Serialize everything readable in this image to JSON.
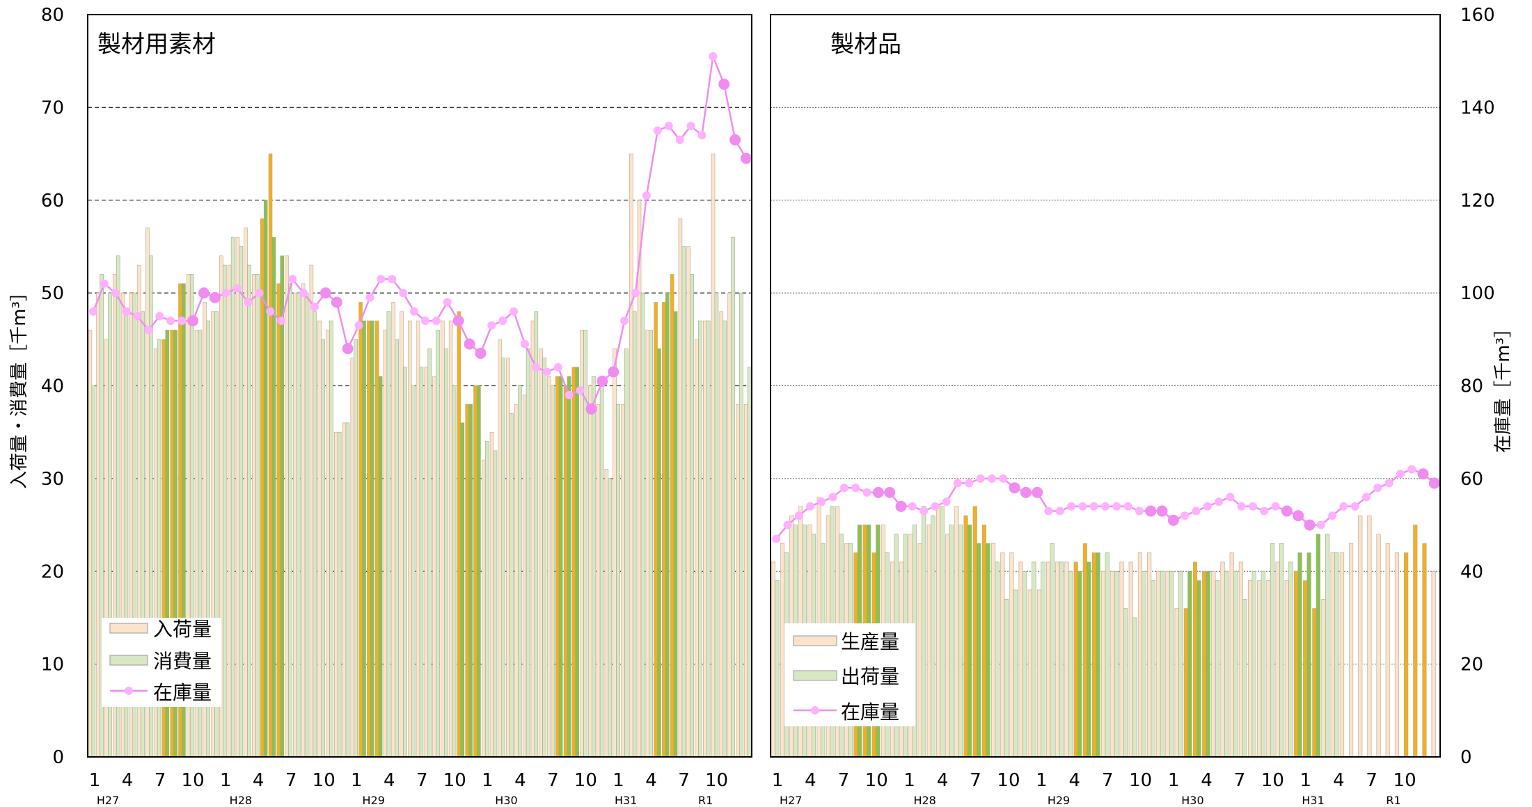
{
  "y_left_label": "入荷量・消費量［千m³］",
  "y_right_label": "在庫量［千m³］",
  "y_left_ticks": [
    "0",
    "10",
    "20",
    "30",
    "40",
    "50",
    "60",
    "70",
    "80"
  ],
  "y_right_ticks": [
    "0",
    "20",
    "40",
    "60",
    "80",
    "100",
    "120",
    "140",
    "160"
  ],
  "colors": {
    "bar_a": "#fbe3cc",
    "bar_b": "#d8e8c4",
    "bar_a_hl": "#f0b020",
    "bar_b_hl": "#8cc050",
    "stock": "#f08cf0",
    "stock_marker": "#ffb0ff"
  },
  "chart_data": [
    {
      "type": "bar",
      "title": "製材用素材",
      "x_tick_labels": [
        "1",
        "4",
        "7",
        "10",
        "1",
        "4",
        "7",
        "10",
        "1",
        "4",
        "7",
        "10",
        "1",
        "4",
        "7",
        "10",
        "1",
        "4",
        "7",
        "10"
      ],
      "x_group_labels": [
        "H27",
        "H28",
        "H29",
        "H30",
        "H31",
        "R1"
      ],
      "ylim_left": [
        0,
        80
      ],
      "ylim_right": [
        0,
        160
      ],
      "legend": [
        "入荷量",
        "消費量",
        "在庫量"
      ],
      "legend_position": "bottom-left",
      "highlight_months": [
        10,
        11,
        12
      ],
      "series": [
        {
          "name": "入荷量",
          "axis": "left",
          "values": [
            46,
            50,
            45,
            52,
            50,
            50,
            53,
            57,
            44,
            45,
            46,
            51,
            52,
            46,
            49,
            48,
            54,
            53,
            56,
            57,
            52,
            58,
            65,
            51,
            54,
            50,
            51,
            53,
            47,
            46,
            35,
            36,
            43,
            49,
            47,
            47,
            46,
            49,
            48,
            47,
            47,
            42,
            41,
            47,
            47,
            48,
            38,
            40,
            32,
            35,
            45,
            43,
            38,
            39,
            47,
            44,
            41,
            41,
            40,
            42,
            46,
            40,
            38,
            31,
            44,
            38,
            65,
            60,
            46,
            49,
            49,
            52,
            58,
            55,
            45,
            47,
            65,
            48,
            50,
            38,
            38
          ]
        },
        {
          "name": "消費量",
          "axis": "left",
          "values": [
            40,
            52,
            50,
            54,
            48,
            50,
            48,
            54,
            45,
            46,
            46,
            51,
            52,
            46,
            47,
            48,
            53,
            56,
            55,
            53,
            52,
            60,
            56,
            54,
            51,
            50,
            50,
            48,
            45,
            47,
            35,
            36,
            45,
            47,
            47,
            41,
            48,
            45,
            42,
            40,
            42,
            44,
            46,
            44,
            40,
            36,
            38,
            40,
            34,
            33,
            43,
            37,
            40,
            44,
            48,
            43,
            40,
            41,
            41,
            42,
            46,
            41,
            40,
            30,
            38,
            44,
            48,
            50,
            46,
            44,
            50,
            48,
            55,
            52,
            47,
            47,
            50,
            47,
            56,
            50,
            42
          ]
        },
        {
          "name": "在庫量",
          "axis": "right",
          "values": [
            96,
            102,
            100,
            96,
            95,
            92,
            95,
            94,
            94,
            94,
            100,
            99,
            100,
            101,
            98,
            100,
            96,
            94,
            103,
            100,
            97,
            100,
            98,
            88,
            93,
            99,
            103,
            103,
            100,
            96,
            94,
            94,
            98,
            94,
            89,
            87,
            93,
            94,
            96,
            89,
            84,
            83,
            84,
            78,
            79,
            75,
            81,
            83,
            94,
            100,
            121,
            135,
            136,
            133,
            136,
            134,
            151,
            145,
            133,
            129
          ]
        }
      ]
    },
    {
      "type": "bar",
      "title": "製材品",
      "x_tick_labels": [
        "1",
        "4",
        "7",
        "10",
        "1",
        "4",
        "7",
        "10",
        "1",
        "4",
        "7",
        "10",
        "1",
        "4",
        "7",
        "10",
        "1",
        "4",
        "7",
        "10"
      ],
      "x_group_labels": [
        "H27",
        "H28",
        "H29",
        "H30",
        "H31",
        "R1"
      ],
      "ylim_left": [
        0,
        80
      ],
      "ylim_right": [
        0,
        160
      ],
      "legend": [
        "生産量",
        "出荷量",
        "在庫量"
      ],
      "legend_position": "bottom-left",
      "highlight_months": [
        10,
        11,
        12
      ],
      "series": [
        {
          "name": "生産量",
          "axis": "left",
          "values": [
            21,
            23,
            26,
            27,
            25,
            28,
            26,
            27,
            23,
            22,
            25,
            22,
            25,
            21,
            21,
            24,
            23,
            25,
            27,
            24,
            27,
            26,
            27,
            25,
            23,
            22,
            22,
            21,
            18,
            18,
            21,
            21,
            21,
            21,
            23,
            22,
            20,
            20,
            21,
            21,
            22,
            22,
            20,
            20,
            16,
            16,
            21,
            20,
            20,
            21,
            22,
            21,
            19,
            19,
            19,
            21,
            19,
            20,
            19,
            16,
            17,
            22,
            22,
            23,
            26,
            26,
            24,
            23,
            22,
            22,
            25,
            23,
            20
          ]
        },
        {
          "name": "出荷量",
          "axis": "left",
          "values": [
            19,
            22,
            25,
            25,
            24,
            23,
            27,
            24,
            23,
            25,
            25,
            25,
            22,
            24,
            24,
            25,
            27,
            26,
            27,
            25,
            25,
            25,
            23,
            23,
            21,
            17,
            18,
            20,
            21,
            21,
            23,
            21,
            20,
            20,
            21,
            22,
            22,
            20,
            16,
            15,
            20,
            19,
            20,
            20,
            20,
            20,
            19,
            20,
            19,
            20,
            20,
            17,
            20,
            20,
            23,
            23,
            21,
            22,
            22,
            24,
            24,
            22
          ]
        },
        {
          "name": "在庫量",
          "axis": "right",
          "values": [
            47,
            50,
            52,
            54,
            55,
            56,
            58,
            58,
            57,
            57,
            57,
            54,
            54,
            53,
            54,
            55,
            59,
            59,
            60,
            60,
            60,
            58,
            57,
            57,
            53,
            53,
            54,
            54,
            54,
            54,
            54,
            54,
            53,
            53,
            53,
            51,
            52,
            53,
            54,
            55,
            56,
            54,
            54,
            53,
            54,
            53,
            52,
            50,
            50,
            52,
            54,
            54,
            56,
            58,
            59,
            61,
            62,
            61,
            59
          ]
        }
      ]
    }
  ]
}
